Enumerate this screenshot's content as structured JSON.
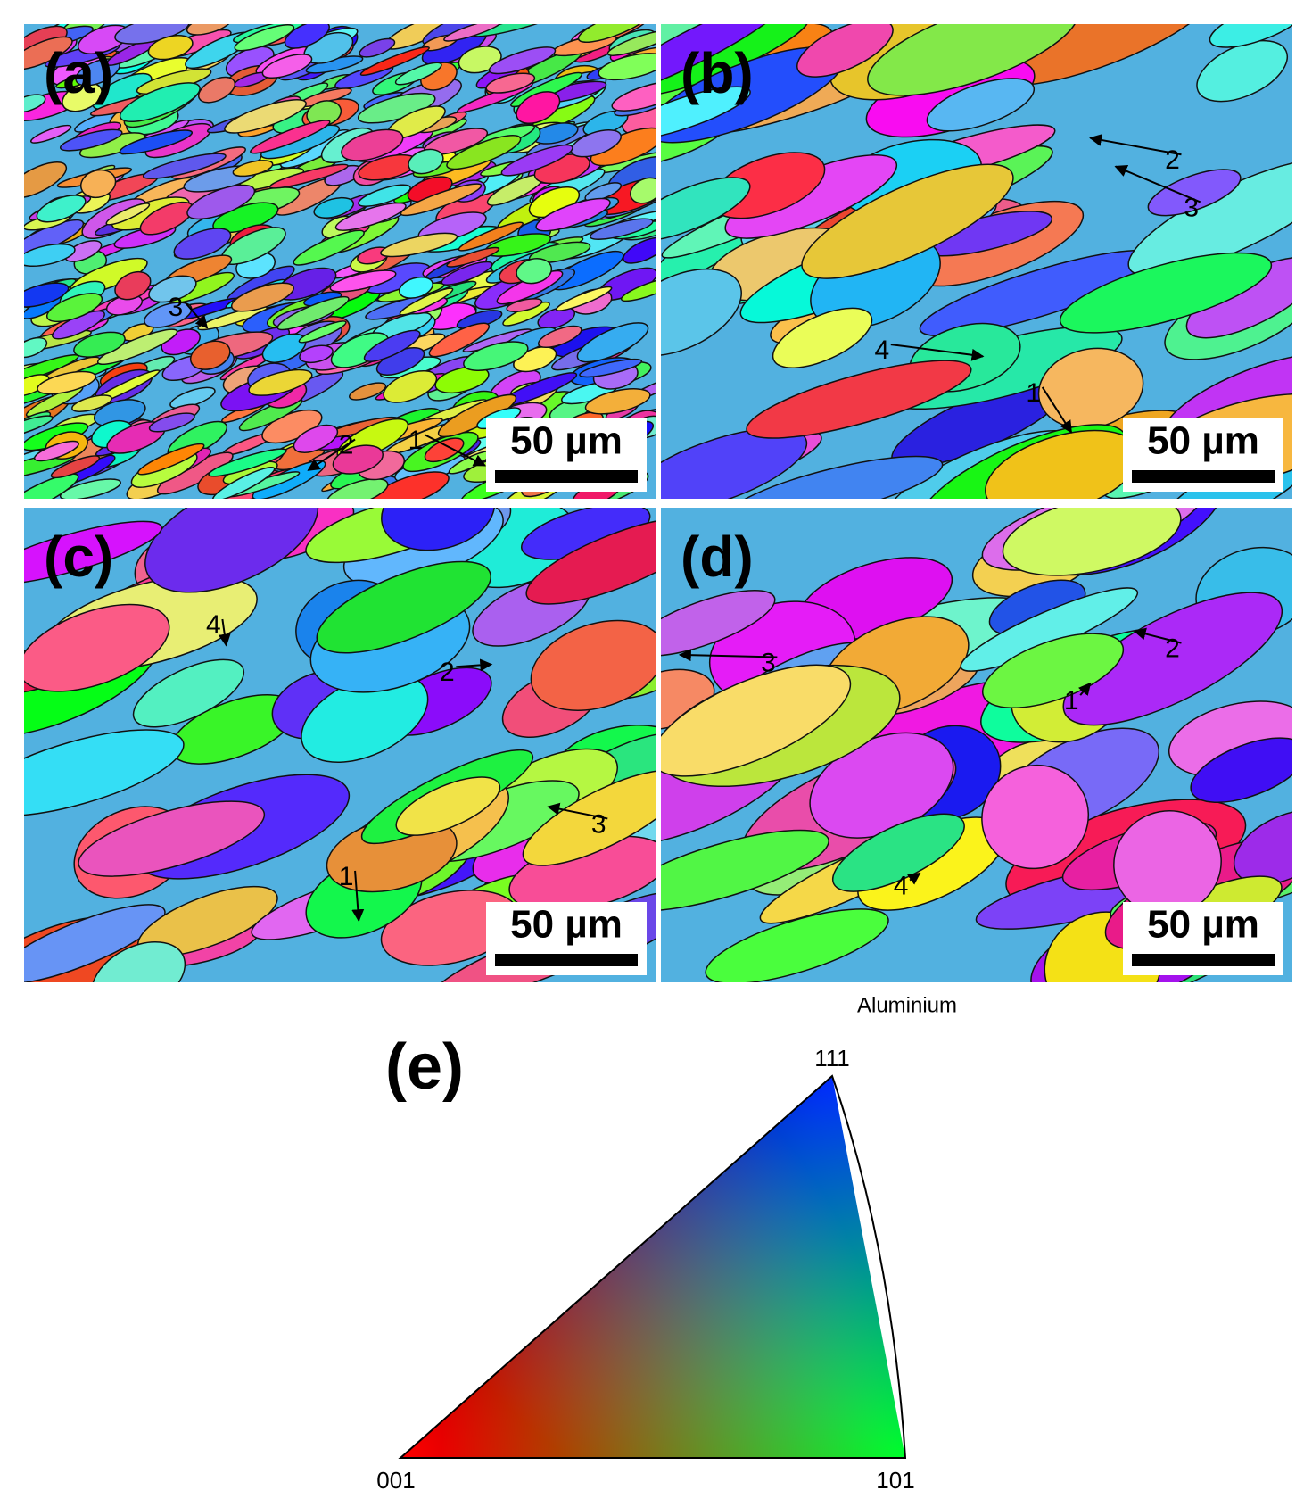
{
  "panels": [
    {
      "label": "(a)",
      "scale_bar": "50 µm",
      "annotations": [
        "1",
        "2",
        "3"
      ]
    },
    {
      "label": "(b)",
      "scale_bar": "50 µm",
      "annotations": [
        "2",
        "3",
        "4",
        "1"
      ]
    },
    {
      "label": "(c)",
      "scale_bar": "50 µm",
      "annotations": [
        "4",
        "2",
        "3",
        "1"
      ]
    },
    {
      "label": "(d)",
      "scale_bar": "50 µm",
      "annotations": [
        "3",
        "2",
        "1",
        "4"
      ]
    }
  ],
  "legend": {
    "material": "Aluminium",
    "label": "(e)",
    "corners": [
      "001",
      "101",
      "111"
    ]
  }
}
